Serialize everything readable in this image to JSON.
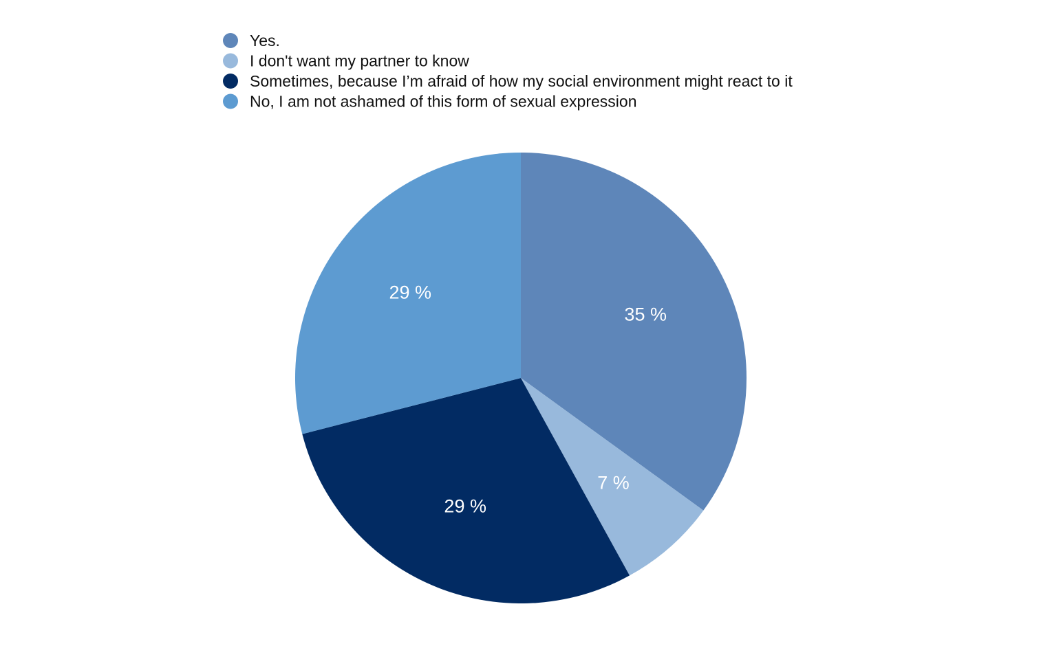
{
  "chart_data": {
    "type": "pie",
    "title": "",
    "categories": [
      "Yes.",
      "I don't want my partner to know",
      "Sometimes, because I’m afraid of how my social environment might react to it",
      "No, I am not ashamed of this form of sexual expression"
    ],
    "values": [
      35,
      7,
      29,
      29
    ],
    "value_labels": [
      "35 %",
      "7 %",
      "29 %",
      "29 %"
    ],
    "colors": [
      "#5e86b9",
      "#98b9dc",
      "#022b63",
      "#5d9bd1"
    ],
    "legend_position": "top",
    "start_angle_deg": 0,
    "direction": "clockwise"
  }
}
